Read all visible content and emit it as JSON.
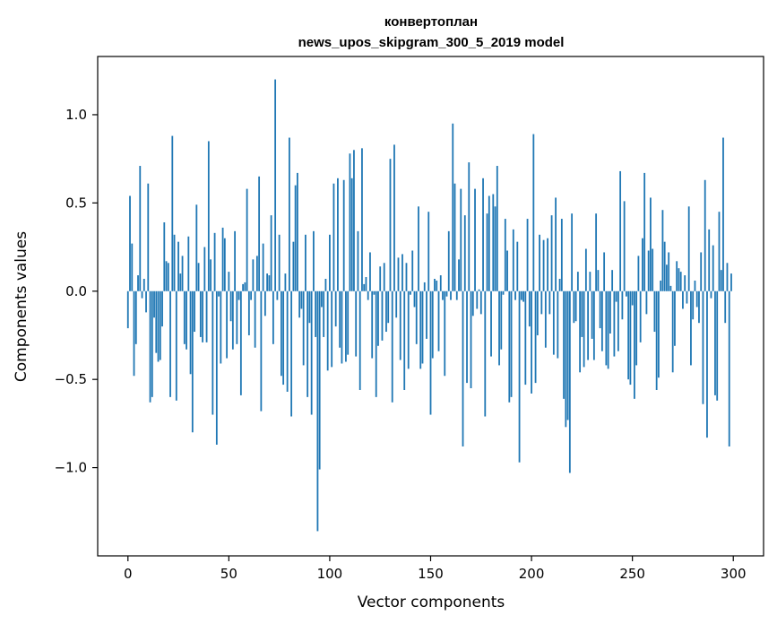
{
  "chart_data": {
    "type": "bar",
    "title": "конвертоплан",
    "subtitle": "news_upos_skipgram_300_5_2019 model",
    "xlabel": "Vector components",
    "ylabel": "Components values",
    "xlim": [
      -15,
      315
    ],
    "ylim": [
      -1.5,
      1.33
    ],
    "xticks": [
      0,
      50,
      100,
      150,
      200,
      250,
      300
    ],
    "yticks": [
      -1.0,
      -0.5,
      0.0,
      0.5,
      1.0
    ],
    "ytick_labels": [
      "−1.0",
      "−0.5",
      "0.0",
      "0.5",
      "1.0"
    ],
    "bar_color": "#1f77b4",
    "grid": false,
    "values": [
      -0.21,
      0.54,
      0.27,
      -0.48,
      -0.3,
      0.09,
      0.71,
      -0.04,
      0.07,
      -0.12,
      0.61,
      -0.63,
      -0.6,
      -0.15,
      -0.35,
      -0.4,
      -0.39,
      -0.2,
      0.39,
      0.17,
      0.16,
      -0.6,
      0.88,
      0.32,
      -0.62,
      0.28,
      0.1,
      0.2,
      -0.3,
      -0.33,
      0.31,
      -0.47,
      -0.8,
      -0.23,
      0.49,
      0.16,
      -0.26,
      -0.29,
      0.25,
      -0.29,
      0.85,
      0.18,
      -0.7,
      0.33,
      -0.87,
      -0.03,
      -0.41,
      0.36,
      0.3,
      -0.38,
      0.11,
      -0.17,
      -0.33,
      0.34,
      -0.3,
      -0.05,
      -0.59,
      0.04,
      0.05,
      0.58,
      -0.25,
      -0.05,
      0.18,
      -0.32,
      0.2,
      0.65,
      -0.68,
      0.27,
      -0.14,
      0.1,
      0.09,
      0.43,
      -0.3,
      1.2,
      -0.05,
      0.32,
      -0.48,
      -0.53,
      0.1,
      -0.57,
      0.87,
      -0.71,
      0.28,
      0.6,
      0.67,
      -0.15,
      -0.1,
      -0.42,
      0.32,
      -0.6,
      -0.18,
      -0.7,
      0.34,
      -0.26,
      -1.36,
      -1.01,
      -0.09,
      -0.26,
      0.07,
      -0.45,
      0.32,
      -0.43,
      0.61,
      -0.2,
      0.64,
      -0.32,
      -0.41,
      0.63,
      -0.4,
      -0.36,
      0.78,
      0.64,
      0.8,
      -0.37,
      0.34,
      -0.56,
      0.81,
      0.04,
      0.08,
      -0.05,
      0.22,
      -0.38,
      -0.02,
      -0.6,
      -0.31,
      0.14,
      -0.28,
      0.16,
      -0.23,
      -0.18,
      0.75,
      -0.63,
      0.83,
      -0.15,
      0.19,
      -0.39,
      0.21,
      -0.56,
      0.16,
      -0.44,
      -0.02,
      0.23,
      -0.09,
      -0.3,
      0.48,
      -0.44,
      -0.41,
      0.05,
      -0.27,
      0.45,
      -0.7,
      -0.38,
      0.07,
      0.06,
      -0.34,
      0.09,
      -0.05,
      -0.48,
      -0.03,
      0.34,
      -0.05,
      0.95,
      0.61,
      -0.05,
      0.18,
      0.58,
      -0.88,
      0.43,
      -0.52,
      0.73,
      -0.55,
      -0.14,
      0.58,
      -0.1,
      0.01,
      -0.13,
      0.64,
      -0.71,
      0.44,
      0.54,
      -0.37,
      0.55,
      0.48,
      0.71,
      -0.42,
      -0.33,
      -0.02,
      0.41,
      0.23,
      -0.63,
      -0.6,
      0.35,
      -0.05,
      0.28,
      -0.97,
      -0.05,
      -0.06,
      -0.53,
      0.41,
      -0.2,
      -0.58,
      0.89,
      -0.52,
      -0.25,
      0.32,
      -0.13,
      0.29,
      -0.32,
      0.3,
      -0.13,
      0.43,
      -0.36,
      0.53,
      -0.38,
      0.07,
      0.41,
      -0.61,
      -0.77,
      -0.73,
      -1.03,
      0.44,
      -0.18,
      -0.17,
      0.11,
      -0.46,
      -0.26,
      -0.43,
      0.24,
      -0.39,
      0.11,
      -0.27,
      -0.39,
      0.44,
      0.12,
      -0.21,
      -0.34,
      0.22,
      -0.42,
      -0.44,
      -0.24,
      0.12,
      -0.37,
      -0.06,
      -0.34,
      0.68,
      -0.16,
      0.51,
      -0.03,
      -0.5,
      -0.53,
      -0.08,
      -0.61,
      -0.42,
      0.2,
      -0.29,
      0.3,
      0.67,
      -0.13,
      0.23,
      0.53,
      0.24,
      -0.23,
      -0.56,
      -0.49,
      0.06,
      0.46,
      0.28,
      0.15,
      0.22,
      0.03,
      -0.46,
      -0.31,
      0.17,
      0.13,
      0.11,
      -0.1,
      0.09,
      -0.07,
      0.48,
      -0.42,
      -0.16,
      0.06,
      -0.09,
      -0.18,
      0.22,
      -0.64,
      0.63,
      -0.83,
      0.35,
      -0.04,
      0.26,
      -0.59,
      -0.62,
      0.45,
      0.12,
      0.87,
      -0.18,
      0.16,
      -0.88,
      0.1
    ]
  }
}
